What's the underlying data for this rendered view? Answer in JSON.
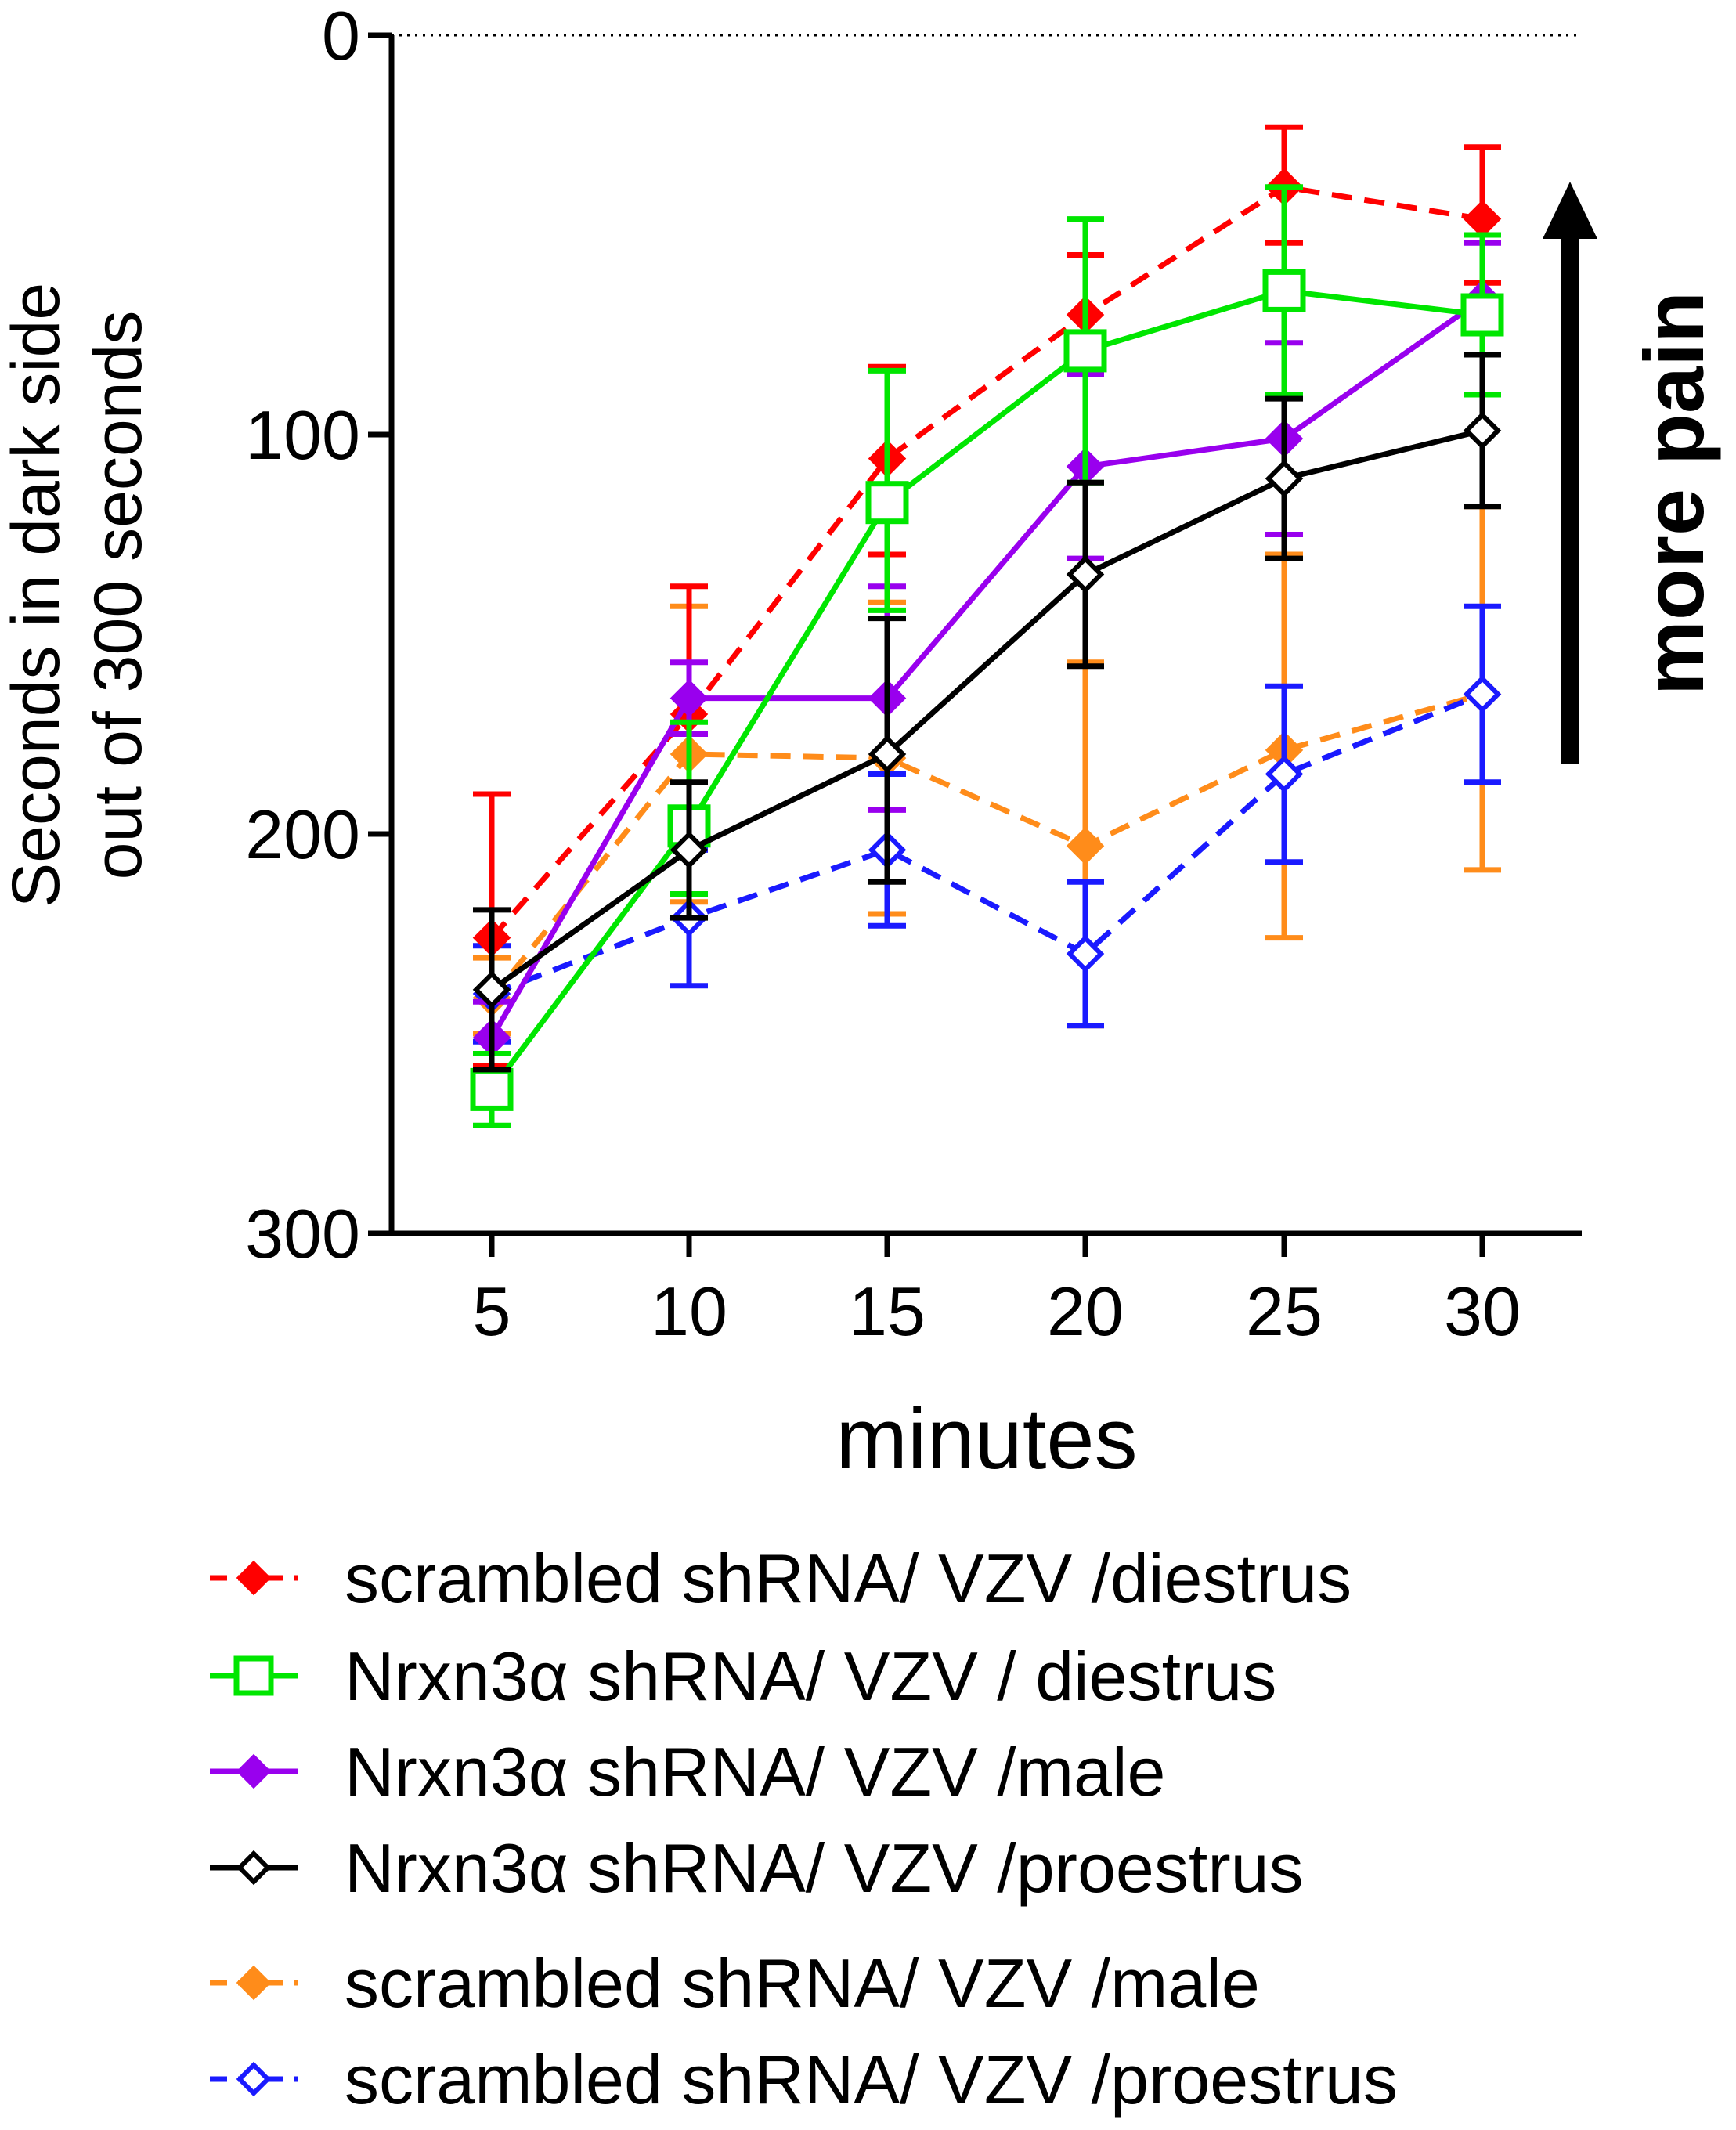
{
  "chart_data": {
    "type": "line",
    "title": "",
    "xlabel": "minutes",
    "ylabel_lines": [
      "Seconds in dark side",
      "out of 300 seconds"
    ],
    "x": [
      5,
      10,
      15,
      20,
      25,
      30
    ],
    "x_ticks": [
      "5",
      "10",
      "15",
      "20",
      "25",
      "30"
    ],
    "ylim": [
      300,
      0
    ],
    "y_inverted": true,
    "y_ticks": [
      "0",
      "100",
      "200",
      "300"
    ],
    "y_tick_values": [
      0,
      100,
      200,
      300
    ],
    "reference_line": 0,
    "annotation": "more pain",
    "legend_position": "bottom",
    "series": [
      {
        "name": "scrambled shRNA/ VZV /diestrus",
        "color": "#ff0000",
        "dashed": true,
        "marker": "diamond",
        "filled": true,
        "values": [
          226,
          170,
          106,
          70,
          38,
          46
        ],
        "err_low": [
          190,
          138,
          83,
          55,
          23,
          28
        ],
        "err_high": [
          258,
          202,
          130,
          84,
          52,
          62
        ]
      },
      {
        "name": "Nrxn3α shRNA/ VZV / diestrus",
        "color": "#00e600",
        "dashed": false,
        "marker": "square",
        "filled": false,
        "values": [
          264,
          198,
          117,
          79,
          64,
          70
        ],
        "err_low": [
          255,
          172,
          84,
          46,
          38,
          50
        ],
        "err_high": [
          273,
          215,
          144,
          112,
          90,
          90
        ]
      },
      {
        "name": "Nrxn3α shRNA/ VZV /male",
        "color": "#9900ee",
        "dashed": false,
        "marker": "diamond",
        "filled": true,
        "values": [
          251,
          166,
          166,
          108,
          101,
          66
        ],
        "err_low": [
          242,
          157,
          138,
          85,
          77,
          52
        ],
        "err_high": [
          260,
          175,
          194,
          131,
          125,
          80
        ]
      },
      {
        "name": "Nrxn3α shRNA/ VZV /proestrus",
        "color": "#000000",
        "dashed": false,
        "marker": "diamond",
        "filled": false,
        "values": [
          239,
          204,
          180,
          135,
          111,
          99
        ],
        "err_low": [
          219,
          187,
          146,
          112,
          91,
          80
        ],
        "err_high": [
          259,
          221,
          212,
          158,
          131,
          118
        ]
      },
      {
        "name": "scrambled shRNA/ VZV /male",
        "color": "#ff8c1a",
        "dashed": true,
        "marker": "diamond",
        "filled": true,
        "values": [
          241,
          180,
          181,
          203,
          179,
          165
        ],
        "err_low": [
          231,
          143,
          142,
          157,
          130,
          118
        ],
        "err_high": [
          250,
          217,
          220,
          248,
          226,
          209
        ]
      },
      {
        "name": "scrambled shRNA/ VZV /proestrus",
        "color": "#1a1aff",
        "dashed": true,
        "marker": "diamond",
        "filled": false,
        "values": [
          240,
          221,
          204,
          230,
          185,
          165
        ],
        "err_low": [
          228,
          204,
          185,
          212,
          163,
          143
        ],
        "err_high": [
          252,
          238,
          223,
          248,
          207,
          187
        ]
      }
    ]
  }
}
